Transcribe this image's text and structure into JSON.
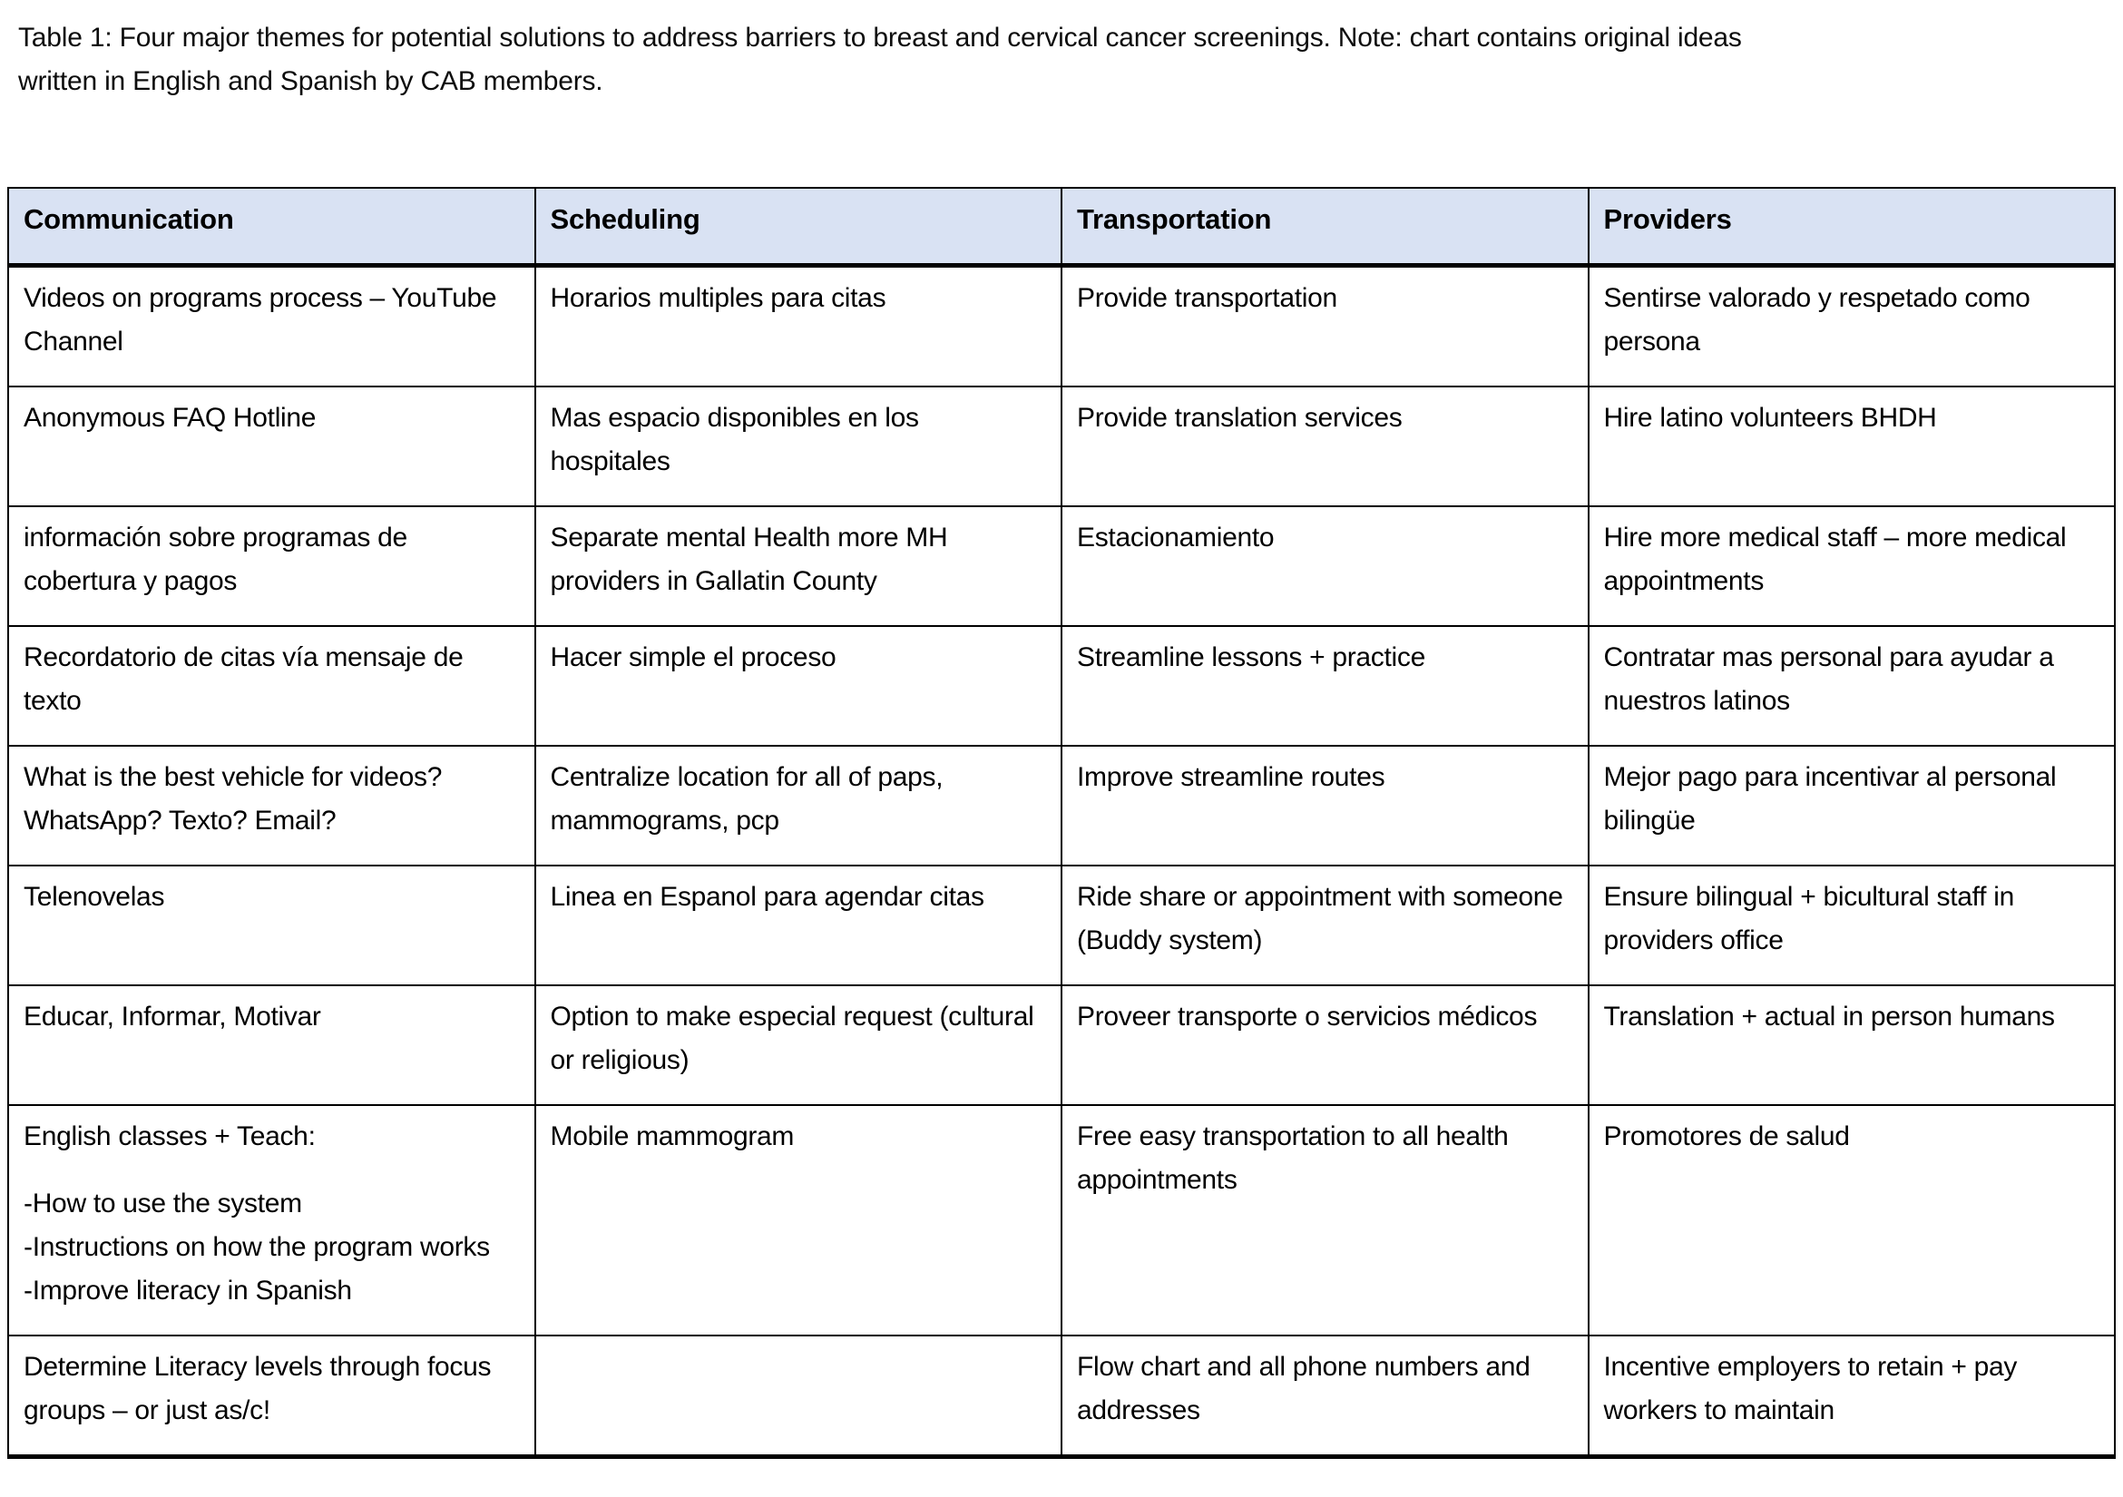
{
  "caption": {
    "line1": "Table 1: Four major themes for potential solutions to address barriers to breast and cervical cancer screenings. Note: chart contains original ideas",
    "line2": "written in English and Spanish by CAB members."
  },
  "table": {
    "headers": [
      "Communication",
      "Scheduling",
      "Transportation",
      "Providers"
    ],
    "rows": [
      [
        [
          "Videos on programs process – YouTube Channel"
        ],
        [
          "Horarios multiples para citas"
        ],
        [
          "Provide transportation"
        ],
        [
          "Sentirse valorado y respetado como persona"
        ]
      ],
      [
        [
          "Anonymous FAQ Hotline"
        ],
        [
          "Mas espacio disponibles en los hospitales"
        ],
        [
          "Provide translation services"
        ],
        [
          "Hire latino volunteers BHDH"
        ]
      ],
      [
        [
          "información sobre programas de cobertura y pagos"
        ],
        [
          "Separate mental Health more MH providers in Gallatin County"
        ],
        [
          "Estacionamiento"
        ],
        [
          "Hire more medical staff – more medical appointments"
        ]
      ],
      [
        [
          "Recordatorio de citas vía mensaje de texto"
        ],
        [
          "Hacer simple el proceso"
        ],
        [
          "Streamline lessons + practice"
        ],
        [
          "Contratar mas personal para ayudar a nuestros latinos"
        ]
      ],
      [
        [
          "What is the best vehicle for videos? WhatsApp? Texto? Email?"
        ],
        [
          "Centralize location for all of paps, mammograms, pcp"
        ],
        [
          "Improve streamline routes"
        ],
        [
          "Mejor pago para incentivar al personal bilingüe"
        ]
      ],
      [
        [
          "Telenovelas"
        ],
        [
          "Linea en Espanol para agendar citas"
        ],
        [
          "Ride share or appointment with someone (Buddy system)"
        ],
        [
          "Ensure bilingual + bicultural staff in providers office"
        ]
      ],
      [
        [
          "Educar, Informar, Motivar"
        ],
        [
          "Option to make especial request (cultural or religious)"
        ],
        [
          "Proveer transporte o servicios médicos"
        ],
        [
          "Translation + actual in person humans"
        ]
      ],
      [
        [
          "English classes + Teach:",
          "",
          "-How to use the system",
          "-Instructions on how the program works",
          "-Improve literacy in Spanish"
        ],
        [
          "Mobile mammogram"
        ],
        [
          "Free easy transportation to all health appointments"
        ],
        [
          "Promotores de salud"
        ]
      ],
      [
        [
          "Determine Literacy levels through focus groups – or just as/c!"
        ],
        [],
        [
          "Flow chart and all phone numbers and addresses"
        ],
        [
          "Incentive employers to retain + pay workers to maintain"
        ]
      ]
    ]
  },
  "colors": {
    "header_background": "#d9e2f3",
    "border": "#000000",
    "text": "#000000",
    "page_background": "#ffffff"
  }
}
